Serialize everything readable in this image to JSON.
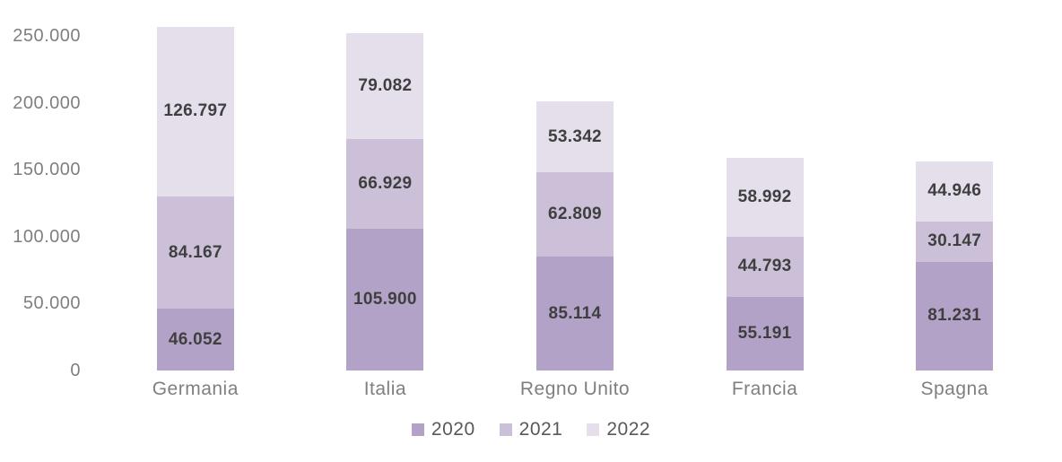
{
  "chart_data": {
    "type": "bar",
    "stacked": true,
    "title": "",
    "xlabel": "",
    "ylabel": "",
    "categories": [
      "Germania",
      "Italia",
      "Regno Unito",
      "Francia",
      "Spagna"
    ],
    "series": [
      {
        "name": "2020",
        "color": "#b3a2c7",
        "values": [
          46052,
          105900,
          85114,
          55191,
          81231
        ]
      },
      {
        "name": "2021",
        "color": "#ccc0d9",
        "values": [
          84167,
          66929,
          62809,
          44793,
          30147
        ]
      },
      {
        "name": "2022",
        "color": "#e5dfec",
        "values": [
          126797,
          79082,
          53342,
          58992,
          44946
        ]
      }
    ],
    "data_labels_shown": [
      [
        "46.052",
        "105.900",
        "85.114",
        "55.191",
        "81.231"
      ],
      [
        "84.167",
        "66.929",
        "62.809",
        "44.793",
        "30.147"
      ],
      [
        "126.797",
        "79.082",
        "53.342",
        "58.992",
        "44.946"
      ]
    ],
    "y_axis": {
      "min": 0,
      "max": 250000,
      "tick_step": 50000,
      "tick_labels": [
        "0",
        "50.000",
        "100.000",
        "150.000",
        "200.000",
        "250.000"
      ]
    },
    "legend": {
      "position": "bottom",
      "entries": [
        "2020",
        "2021",
        "2022"
      ]
    },
    "grid": false,
    "number_format": "thousands-dot",
    "colors": {
      "data_label_text": "#3f3f3f",
      "axis_text": "#7f7f7f",
      "legend_text": "#595959",
      "background": "#ffffff"
    }
  }
}
